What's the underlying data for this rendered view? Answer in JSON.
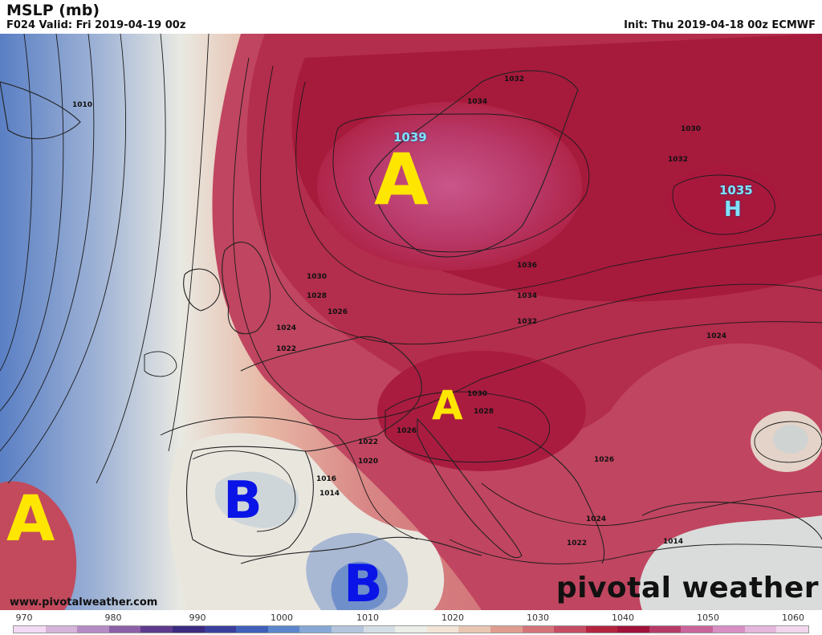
{
  "header": {
    "title": "MSLP (mb)",
    "valid": "F024 Valid: Fri 2019-04-19 00z",
    "init": "Init: Thu 2019-04-18 00z ECMWF"
  },
  "annotations": {
    "a_scandinavia": "A",
    "a_italy": "A",
    "a_atlantic": "A",
    "b_iberia": "B",
    "b_algeria": "B"
  },
  "centers": {
    "high_scandinavia_value": "1039",
    "high_russia_value": "1035",
    "high_russia_symbol": "H"
  },
  "contour_labels": [
    "1010",
    "1032",
    "1034",
    "1030",
    "1032",
    "1036",
    "1034",
    "1032",
    "1030",
    "1028",
    "1026",
    "1024",
    "1022",
    "1030",
    "1028",
    "1026",
    "1022",
    "1020",
    "1016",
    "1014",
    "1024",
    "1026",
    "1024",
    "1022",
    "1014"
  ],
  "footer": {
    "website": "www.pivotalweather.com",
    "brand": "pivotal weather"
  },
  "colorbar": {
    "ticks": [
      "970",
      "980",
      "990",
      "1000",
      "1010",
      "1020",
      "1030",
      "1040",
      "1050",
      "1060"
    ],
    "colors": [
      "#f3d9f3",
      "#d6b3d9",
      "#b58bc4",
      "#8d5fa8",
      "#5e3a8c",
      "#3b2a80",
      "#3a3f9e",
      "#3f5fb8",
      "#5b86cc",
      "#87a8d6",
      "#b4c4dd",
      "#d5dde4",
      "#eceee9",
      "#f2e4d6",
      "#e8c6b2",
      "#df9d8f",
      "#d4737a",
      "#c54c63",
      "#b3253f",
      "#a0133a",
      "#b73a66",
      "#c9659a",
      "#d88fc4",
      "#e6b6dd",
      "#f1d6ec"
    ]
  }
}
